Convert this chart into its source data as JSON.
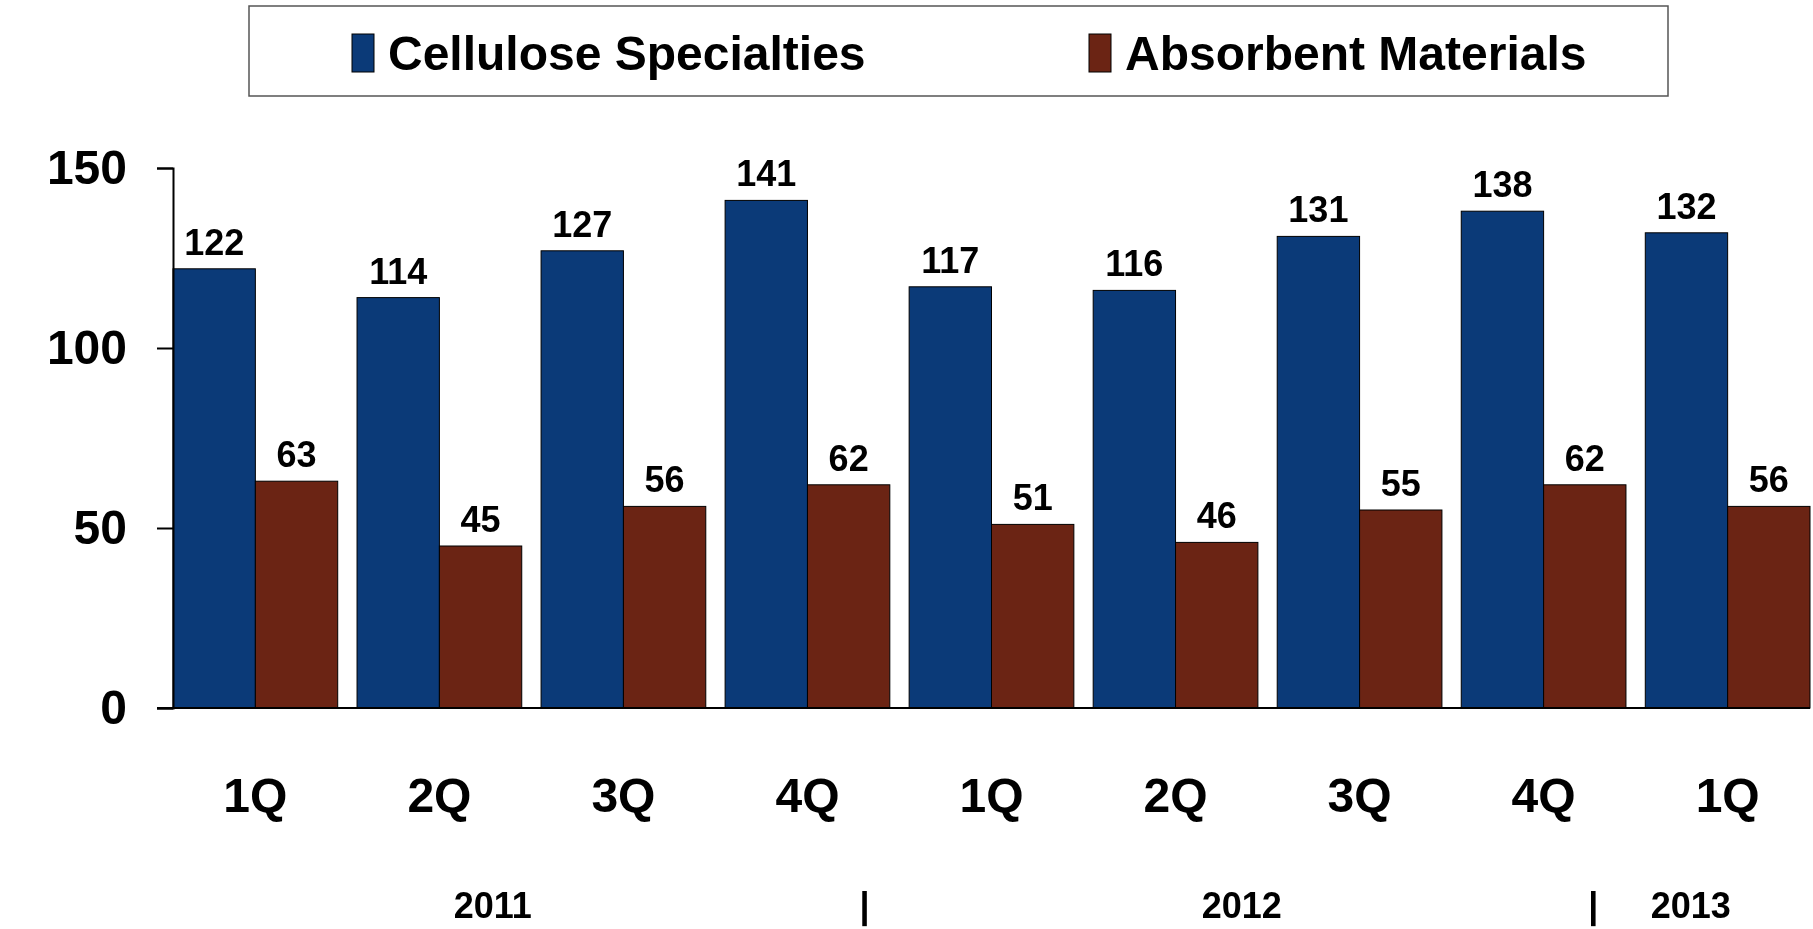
{
  "chart_data": {
    "type": "bar",
    "categories": [
      "1Q",
      "2Q",
      "3Q",
      "4Q",
      "1Q",
      "2Q",
      "3Q",
      "4Q",
      "1Q"
    ],
    "series": [
      {
        "name": "Cellulose Specialties",
        "color": "#0b3a78",
        "values": [
          122,
          114,
          127,
          141,
          117,
          116,
          131,
          138,
          132
        ]
      },
      {
        "name": "Absorbent Materials",
        "color": "#6b2414",
        "values": [
          63,
          45,
          56,
          62,
          51,
          46,
          55,
          62,
          56
        ]
      }
    ],
    "ylim": [
      0,
      150
    ],
    "yticks": [
      0,
      50,
      100,
      150
    ],
    "grid": false,
    "legend": "top",
    "data_labels": true,
    "annotations": [
      "2011",
      "|",
      "2012",
      "|",
      "2013"
    ]
  }
}
